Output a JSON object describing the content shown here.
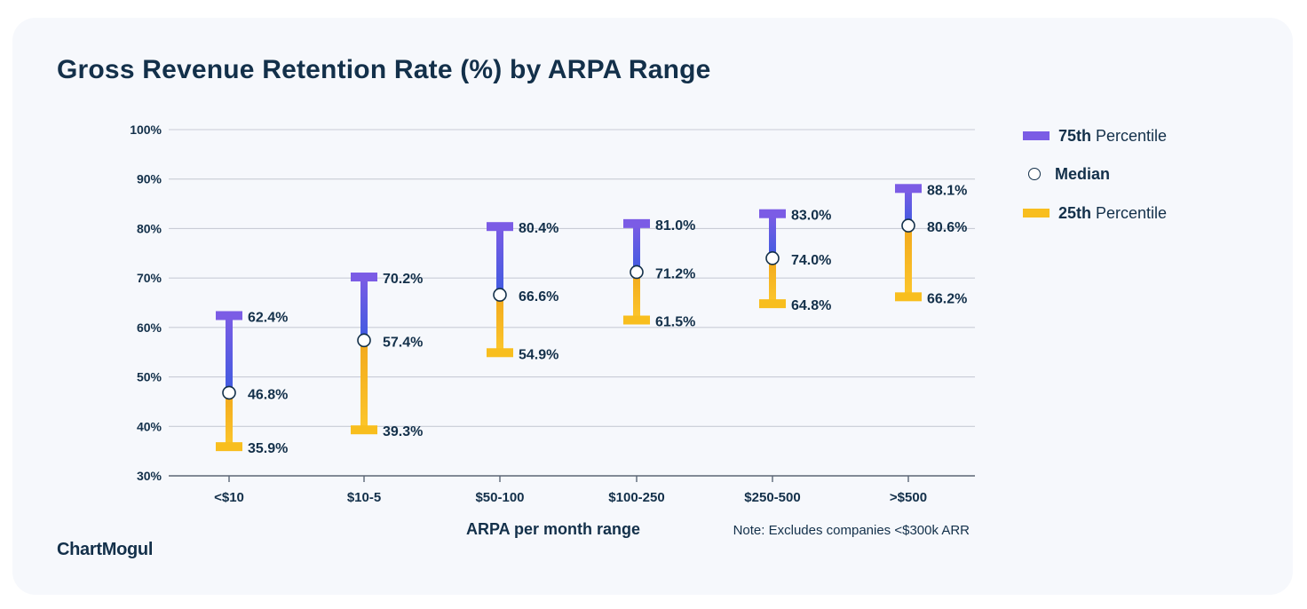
{
  "title": "Gross Revenue Retention Rate (%) by ARPA Range",
  "brand": "ChartMogul",
  "note": "Note: Excludes companies <$300k ARR",
  "legend": {
    "p75": {
      "bold": "75th",
      "rest": "Percentile"
    },
    "median": {
      "bold": "Median"
    },
    "p25": {
      "bold": "25th",
      "rest": "Percentile"
    }
  },
  "colors": {
    "p75": "#7b5ce5",
    "p25": "#f8be1e",
    "text": "#13304a",
    "grid": "#c9ccd6"
  },
  "chart_data": {
    "type": "range",
    "title": "Gross Revenue Retention Rate (%) by ARPA Range",
    "xlabel": "ARPA per month range",
    "ylabel": "",
    "ylim": [
      30,
      100
    ],
    "yticks": [
      "30%",
      "40%",
      "50%",
      "60%",
      "70%",
      "80%",
      "90%",
      "100%"
    ],
    "ytick_values": [
      30,
      40,
      50,
      60,
      70,
      80,
      90,
      100
    ],
    "grid": true,
    "legend_position": "right",
    "categories": [
      "<$10",
      "$10-5",
      "$50-100",
      "$100-250",
      "$250-500",
      ">$500"
    ],
    "series": [
      {
        "name": "75th Percentile",
        "values": [
          62.4,
          70.2,
          80.4,
          81.0,
          83.0,
          88.1
        ],
        "labels": [
          "62.4%",
          "70.2%",
          "80.4%",
          "81.0%",
          "83.0%",
          "88.1%"
        ]
      },
      {
        "name": "Median",
        "values": [
          46.8,
          57.4,
          66.6,
          71.2,
          74.0,
          80.6
        ],
        "labels": [
          "46.8%",
          "57.4%",
          "66.6%",
          "71.2%",
          "74.0%",
          "80.6%"
        ]
      },
      {
        "name": "25th Percentile",
        "values": [
          35.9,
          39.3,
          54.9,
          61.5,
          64.8,
          66.2
        ],
        "labels": [
          "35.9%",
          "39.3%",
          "54.9%",
          "61.5%",
          "64.8%",
          "66.2%"
        ]
      }
    ]
  }
}
